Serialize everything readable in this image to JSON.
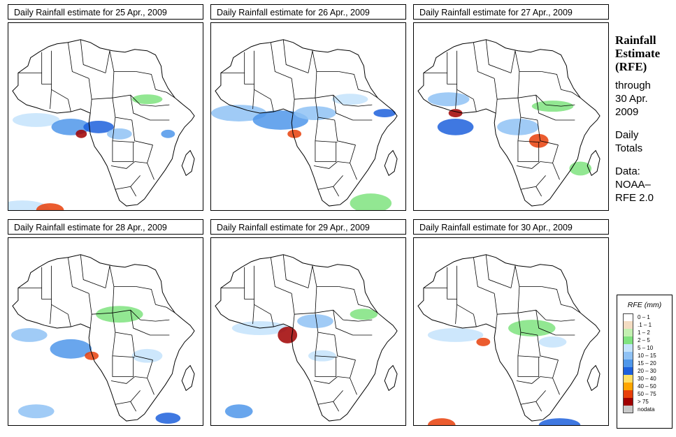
{
  "panels": [
    {
      "title": "Daily Rainfall estimate for  25 Apr., 2009",
      "pattern": 0
    },
    {
      "title": "Daily Rainfall estimate for  26 Apr., 2009",
      "pattern": 1
    },
    {
      "title": "Daily Rainfall estimate for  27 Apr., 2009",
      "pattern": 2
    },
    {
      "title": "Daily Rainfall estimate for  28 Apr., 2009",
      "pattern": 3
    },
    {
      "title": "Daily Rainfall estimate for  29 Apr., 2009",
      "pattern": 4
    },
    {
      "title": "Daily Rainfall estimate for  30 Apr., 2009",
      "pattern": 5
    }
  ],
  "sidebar": {
    "title_line1": "Rainfall",
    "title_line2": "Estimate",
    "title_line3": "(RFE)",
    "through_label": "through",
    "through_date1": "30 Apr.",
    "through_date2": "2009",
    "period_line1": "Daily",
    "period_line2": "Totals",
    "data_label": "Data:",
    "data_source1": "NOAA–",
    "data_source2": "RFE 2.0"
  },
  "legend": {
    "title": "RFE (mm)",
    "items": [
      {
        "label": "0 – 1",
        "color": "#ffffff"
      },
      {
        "label": ".1 – 1",
        "color": "#f3dcc2"
      },
      {
        "label": "1 – 2",
        "color": "#c3f0b1"
      },
      {
        "label": "2 – 5",
        "color": "#7fe37f"
      },
      {
        "label": "5 – 10",
        "color": "#c4e3fb"
      },
      {
        "label": "10 – 15",
        "color": "#8fc2f4"
      },
      {
        "label": "15 – 20",
        "color": "#4f97ea"
      },
      {
        "label": "20 – 30",
        "color": "#1d60dc"
      },
      {
        "label": "30 – 40",
        "color": "#ffe066"
      },
      {
        "label": "40 – 50",
        "color": "#ffa500"
      },
      {
        "label": "50 – 75",
        "color": "#e8400a"
      },
      {
        "label": "> 75",
        "color": "#a00000"
      },
      {
        "label": "nodata",
        "color": "#c8c8c8"
      }
    ]
  }
}
